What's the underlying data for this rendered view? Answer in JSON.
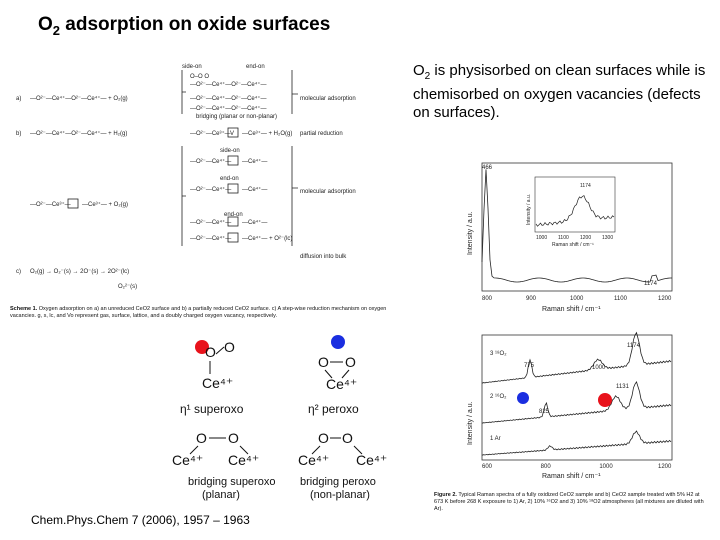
{
  "title": {
    "prefix": "O",
    "sub": "2",
    "rest": " adsorption on oxide surfaces"
  },
  "description": {
    "prefix": "O",
    "sub": "2",
    "rest": " is physisorbed on clean surfaces while is chemisorbed on oxygen vacancies (defects on surfaces)."
  },
  "citation": "Chem.Phys.Chem 7 (2006), 1957 – 1963",
  "scheme": {
    "row_a": "a)",
    "row_b": "b)",
    "row_c": "c)",
    "side_on": "side-on",
    "end_on": "end-on",
    "molecular_adsorption": "molecular adsorption",
    "bridging": "bridging (planar or non-planar)",
    "partial_reduction": "partial reduction",
    "diffusion": "diffusion into bulk",
    "caption_bold": "Scheme 1.",
    "caption": " Oxygen adsorption on a) an unreduced CeO2 surface and b) a partially reduced CeO2 surface. c) A step-wise reduction mechanism on oxygen vacancies. g, s, lc, and Vo represent gas, surface, lattice, and a doubly charged oxygen vacancy, respectively."
  },
  "structures": {
    "superoxo": {
      "label": "η¹ superoxo",
      "o1": "O",
      "o2": "O",
      "ce": "Ce⁴⁺"
    },
    "peroxo": {
      "label": "η² peroxo",
      "o1": "O",
      "o2": "O",
      "ce": "Ce⁴⁺"
    },
    "bridging_superoxo": {
      "label1": "bridging superoxo",
      "label2": "(planar)",
      "o1": "O",
      "o2": "O",
      "ce1": "Ce⁴⁺",
      "ce2": "Ce⁴⁺"
    },
    "bridging_peroxo": {
      "label1": "bridging peroxo",
      "label2": "(non-planar)",
      "o1": "O",
      "o2": "O",
      "ce1": "Ce⁴⁺",
      "ce2": "Ce⁴⁺"
    }
  },
  "colors": {
    "red_marker": "#e8121b",
    "blue_marker": "#1a2ee0"
  },
  "chart_data": [
    {
      "type": "line",
      "title": "",
      "xlabel": "Raman shift / cm⁻¹",
      "ylabel": "Intensity / a.u.",
      "xlim": [
        800,
        1200
      ],
      "x_ticks": [
        "800",
        "900",
        "1000",
        "1100",
        "1200"
      ],
      "annotations": [
        "466",
        "1174"
      ],
      "inset": {
        "xlabel": "Raman shift / cm⁻¹",
        "ylabel": "Intensity / a.u.",
        "x_ticks": [
          "1000",
          "1100",
          "1200",
          "1300"
        ],
        "annotations": [
          "1174"
        ]
      }
    },
    {
      "type": "line",
      "title": "",
      "xlabel": "Raman shift / cm⁻¹",
      "ylabel": "Intensity / a.u.",
      "xlim": [
        600,
        1200
      ],
      "x_ticks": [
        "600",
        "800",
        "1000",
        "1200"
      ],
      "series": [
        {
          "name": "3 ¹⁸O₂"
        },
        {
          "name": "2 ¹⁶O₂"
        },
        {
          "name": "1 Ar"
        }
      ],
      "annotations": [
        "775",
        "1174",
        "1000",
        "1131",
        "825"
      ],
      "markers": [
        {
          "color": "red",
          "near": "1131"
        },
        {
          "color": "blue",
          "near": "825"
        }
      ]
    }
  ],
  "figure_caption": {
    "bold": "Figure 2.",
    "text": " Typical Raman spectra of a fully oxidized CeO2 sample and b) CeO2 sample treated with 5% H2 at 673 K before 268 K exposure to 1) Ar, 2) 10% ¹⁶O2 and 3) 10% ¹⁸O2 atmospheres (all mixtures are diluted with Ar)."
  }
}
